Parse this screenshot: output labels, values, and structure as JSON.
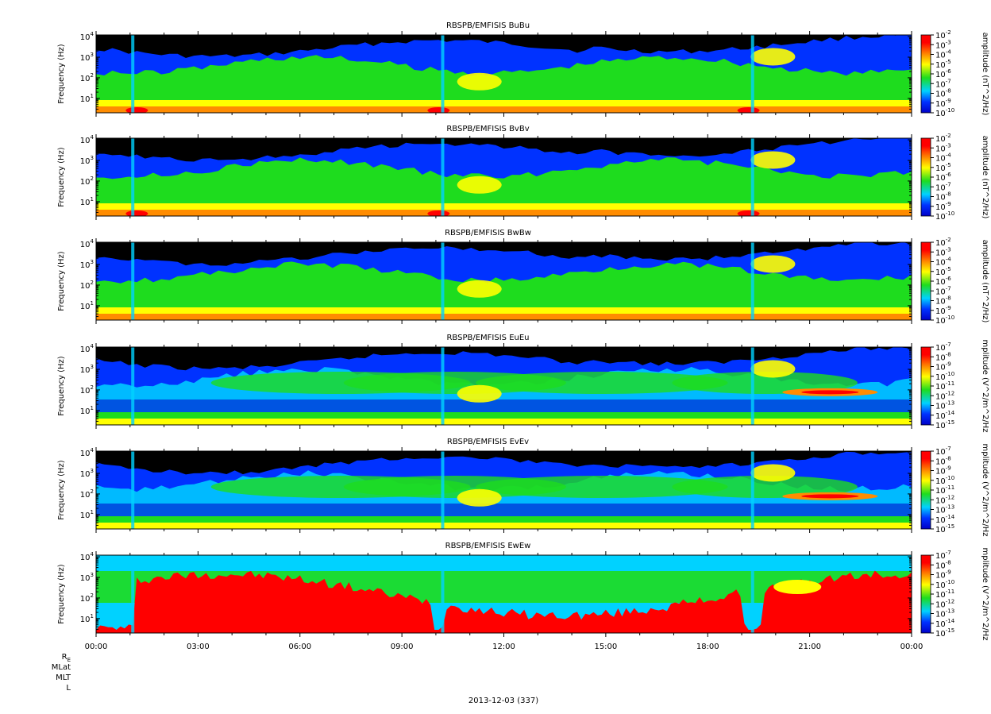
{
  "chart_data": [
    {
      "type": "heatmap",
      "title": "RBSPB/EMFISIS  BuBu",
      "ylabel": "Frequency (Hz)",
      "ylog": true,
      "ylim": [
        2,
        12000
      ],
      "yticks": [
        {
          "base": "10",
          "exp": "1",
          "value": 10
        },
        {
          "base": "10",
          "exp": "2",
          "value": 100
        },
        {
          "base": "10",
          "exp": "3",
          "value": 1000
        },
        {
          "base": "10",
          "exp": "4",
          "value": 10000
        }
      ],
      "colorbar": {
        "label": "amplitude (nT^2/Hz)",
        "log": true,
        "range": [
          1e-10,
          0.01
        ],
        "ticks": [
          {
            "base": "10",
            "exp": "-2"
          },
          {
            "base": "10",
            "exp": "-3"
          },
          {
            "base": "10",
            "exp": "-4"
          },
          {
            "base": "10",
            "exp": "-5"
          },
          {
            "base": "10",
            "exp": "-6"
          },
          {
            "base": "10",
            "exp": "-7"
          },
          {
            "base": "10",
            "exp": "-8"
          },
          {
            "base": "10",
            "exp": "-9"
          },
          {
            "base": "10",
            "exp": "-10"
          }
        ]
      }
    },
    {
      "type": "heatmap",
      "title": "RBSPB/EMFISIS  BvBv",
      "ylabel": "Frequency (Hz)",
      "ylog": true,
      "ylim": [
        2,
        12000
      ],
      "yticks": [
        {
          "base": "10",
          "exp": "1",
          "value": 10
        },
        {
          "base": "10",
          "exp": "2",
          "value": 100
        },
        {
          "base": "10",
          "exp": "3",
          "value": 1000
        },
        {
          "base": "10",
          "exp": "4",
          "value": 10000
        }
      ],
      "colorbar": {
        "label": "amplitude (nT^2/Hz)",
        "log": true,
        "range": [
          1e-10,
          0.01
        ],
        "ticks": [
          {
            "base": "10",
            "exp": "-2"
          },
          {
            "base": "10",
            "exp": "-3"
          },
          {
            "base": "10",
            "exp": "-4"
          },
          {
            "base": "10",
            "exp": "-5"
          },
          {
            "base": "10",
            "exp": "-6"
          },
          {
            "base": "10",
            "exp": "-7"
          },
          {
            "base": "10",
            "exp": "-8"
          },
          {
            "base": "10",
            "exp": "-9"
          },
          {
            "base": "10",
            "exp": "-10"
          }
        ]
      }
    },
    {
      "type": "heatmap",
      "title": "RBSPB/EMFISIS  BwBw",
      "ylabel": "Frequency (Hz)",
      "ylog": true,
      "ylim": [
        2,
        12000
      ],
      "yticks": [
        {
          "base": "10",
          "exp": "1",
          "value": 10
        },
        {
          "base": "10",
          "exp": "2",
          "value": 100
        },
        {
          "base": "10",
          "exp": "3",
          "value": 1000
        },
        {
          "base": "10",
          "exp": "4",
          "value": 10000
        }
      ],
      "colorbar": {
        "label": "amplitude (nT^2/Hz)",
        "log": true,
        "range": [
          1e-10,
          0.01
        ],
        "ticks": [
          {
            "base": "10",
            "exp": "-2"
          },
          {
            "base": "10",
            "exp": "-3"
          },
          {
            "base": "10",
            "exp": "-4"
          },
          {
            "base": "10",
            "exp": "-5"
          },
          {
            "base": "10",
            "exp": "-6"
          },
          {
            "base": "10",
            "exp": "-7"
          },
          {
            "base": "10",
            "exp": "-8"
          },
          {
            "base": "10",
            "exp": "-9"
          },
          {
            "base": "10",
            "exp": "-10"
          }
        ]
      }
    },
    {
      "type": "heatmap",
      "title": "RBSPB/EMFISIS  EuEu",
      "ylabel": "Frequency (Hz)",
      "ylog": true,
      "ylim": [
        2,
        12000
      ],
      "yticks": [
        {
          "base": "10",
          "exp": "1",
          "value": 10
        },
        {
          "base": "10",
          "exp": "2",
          "value": 100
        },
        {
          "base": "10",
          "exp": "3",
          "value": 1000
        },
        {
          "base": "10",
          "exp": "4",
          "value": 10000
        }
      ],
      "colorbar": {
        "label": "mplitude (V^2/m^2/Hz",
        "log": true,
        "range": [
          1e-15,
          1e-07
        ],
        "ticks": [
          {
            "base": "10",
            "exp": "-7"
          },
          {
            "base": "10",
            "exp": "-8"
          },
          {
            "base": "10",
            "exp": "-9"
          },
          {
            "base": "10",
            "exp": "-10"
          },
          {
            "base": "10",
            "exp": "-11"
          },
          {
            "base": "10",
            "exp": "-12"
          },
          {
            "base": "10",
            "exp": "-13"
          },
          {
            "base": "10",
            "exp": "-14"
          },
          {
            "base": "10",
            "exp": "-15"
          }
        ]
      }
    },
    {
      "type": "heatmap",
      "title": "RBSPB/EMFISIS  EvEv",
      "ylabel": "Frequency (Hz)",
      "ylog": true,
      "ylim": [
        2,
        12000
      ],
      "yticks": [
        {
          "base": "10",
          "exp": "1",
          "value": 10
        },
        {
          "base": "10",
          "exp": "2",
          "value": 100
        },
        {
          "base": "10",
          "exp": "3",
          "value": 1000
        },
        {
          "base": "10",
          "exp": "4",
          "value": 10000
        }
      ],
      "colorbar": {
        "label": "mplitude (V^2/m^2/Hz",
        "log": true,
        "range": [
          1e-15,
          1e-07
        ],
        "ticks": [
          {
            "base": "10",
            "exp": "-7"
          },
          {
            "base": "10",
            "exp": "-8"
          },
          {
            "base": "10",
            "exp": "-9"
          },
          {
            "base": "10",
            "exp": "-10"
          },
          {
            "base": "10",
            "exp": "-11"
          },
          {
            "base": "10",
            "exp": "-12"
          },
          {
            "base": "10",
            "exp": "-13"
          },
          {
            "base": "10",
            "exp": "-14"
          },
          {
            "base": "10",
            "exp": "-15"
          }
        ]
      }
    },
    {
      "type": "heatmap",
      "title": "RBSPB/EMFISIS  EwEw",
      "ylabel": "Frequency (Hz)",
      "ylog": true,
      "ylim": [
        2,
        12000
      ],
      "yticks": [
        {
          "base": "10",
          "exp": "1",
          "value": 10
        },
        {
          "base": "10",
          "exp": "2",
          "value": 100
        },
        {
          "base": "10",
          "exp": "3",
          "value": 1000
        },
        {
          "base": "10",
          "exp": "4",
          "value": 10000
        }
      ],
      "colorbar": {
        "label": "mplitude (V^2/m^2/Hz",
        "log": true,
        "range": [
          1e-15,
          1e-07
        ],
        "ticks": [
          {
            "base": "10",
            "exp": "-7"
          },
          {
            "base": "10",
            "exp": "-8"
          },
          {
            "base": "10",
            "exp": "-9"
          },
          {
            "base": "10",
            "exp": "-10"
          },
          {
            "base": "10",
            "exp": "-11"
          },
          {
            "base": "10",
            "exp": "-12"
          },
          {
            "base": "10",
            "exp": "-13"
          },
          {
            "base": "10",
            "exp": "-14"
          },
          {
            "base": "10",
            "exp": "-15"
          }
        ]
      }
    }
  ],
  "x_axis": {
    "ticks": [
      "00:00",
      "03:00",
      "06:00",
      "09:00",
      "12:00",
      "15:00",
      "18:00",
      "21:00",
      "00:00"
    ],
    "xlabel": "2013-12-03 (337)"
  },
  "ephemeris_labels": [
    {
      "base": "R",
      "sub": "E"
    },
    {
      "base": "MLat",
      "sub": ""
    },
    {
      "base": "MLT",
      "sub": ""
    },
    {
      "base": "L",
      "sub": ""
    }
  ],
  "colors": {
    "black": "#000000",
    "dark_blue": "#0000c8",
    "blue": "#0032ff",
    "cyan": "#00d2ff",
    "green": "#1edc1e",
    "yellow": "#ffff00",
    "orange": "#ff8c00",
    "red": "#ff0000"
  }
}
